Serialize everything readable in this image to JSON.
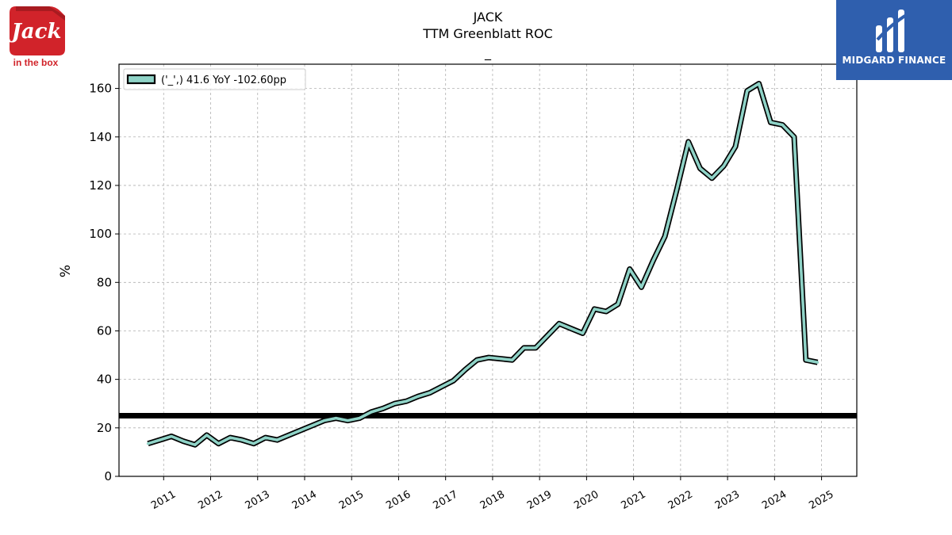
{
  "header": {
    "ticker": "JACK",
    "metric": "TTM Greenblatt ROC",
    "subtitle": "_"
  },
  "logos": {
    "left_brand": "Jack in the box",
    "right_brand": "MIDGARD FINANCE"
  },
  "colors": {
    "line_fill": "#8fd3c7",
    "line_edge": "#000000",
    "reference_line": "#000000",
    "grid": "#b0b0b0",
    "right_logo_bg": "#2f5fae",
    "left_logo_red": "#d1232a"
  },
  "chart_data": {
    "type": "line",
    "title": "JACK",
    "subtitle": "TTM Greenblatt ROC",
    "xlabel": "",
    "ylabel": "%",
    "ylim": [
      0,
      170
    ],
    "xlim": [
      2010.05,
      2025.75
    ],
    "yticks": [
      0,
      20,
      40,
      60,
      80,
      100,
      120,
      140,
      160
    ],
    "xticks": [
      "2011",
      "2012",
      "2013",
      "2014",
      "2015",
      "2016",
      "2017",
      "2018",
      "2019",
      "2020",
      "2021",
      "2022",
      "2023",
      "2024",
      "2025"
    ],
    "grid": true,
    "legend_position": "top-left",
    "reference_line": {
      "y": 25
    },
    "series": [
      {
        "name": "('_',) 41.6 YoY -102.60pp",
        "x": [
          "2010-09",
          "2010-12",
          "2011-03",
          "2011-06",
          "2011-09",
          "2011-12",
          "2012-03",
          "2012-06",
          "2012-09",
          "2012-12",
          "2013-03",
          "2013-06",
          "2013-09",
          "2013-12",
          "2014-03",
          "2014-06",
          "2014-09",
          "2014-12",
          "2015-03",
          "2015-06",
          "2015-09",
          "2015-12",
          "2016-03",
          "2016-06",
          "2016-09",
          "2016-12",
          "2017-03",
          "2017-06",
          "2017-09",
          "2017-12",
          "2018-03",
          "2018-06",
          "2018-09",
          "2018-12",
          "2019-03",
          "2019-06",
          "2019-09",
          "2019-12",
          "2020-03",
          "2020-06",
          "2020-09",
          "2020-12",
          "2021-03",
          "2021-06",
          "2021-09",
          "2021-12",
          "2022-03",
          "2022-06",
          "2022-09",
          "2022-12",
          "2023-03",
          "2023-06",
          "2023-09",
          "2023-12",
          "2024-03",
          "2024-06",
          "2024-09",
          "2024-12"
        ],
        "values": [
          13.5,
          15,
          16.5,
          14.5,
          13,
          17,
          13.5,
          16,
          15,
          13.5,
          16,
          15,
          17,
          19,
          21,
          23,
          24,
          23,
          24,
          26.5,
          28,
          30,
          31,
          33,
          34.5,
          37,
          39.5,
          44,
          48,
          49,
          48.5,
          48,
          53,
          53,
          58,
          63,
          61,
          59,
          69,
          68,
          71,
          85.5,
          78,
          89,
          99,
          118,
          138,
          127,
          123,
          128,
          136,
          159,
          162,
          146,
          145,
          140,
          48,
          47
        ]
      }
    ]
  }
}
